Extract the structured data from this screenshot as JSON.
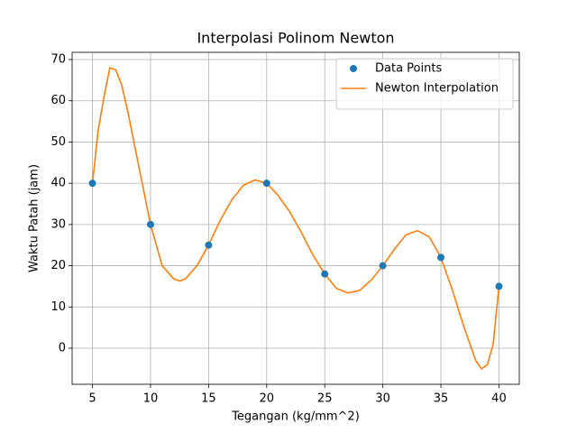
{
  "chart_data": {
    "type": "line",
    "title": "Interpolasi Polinom Newton",
    "x_label": "Tegangan (kg/mm^2)",
    "y_label": "Waktu Patah (jam)",
    "series": [
      {
        "name": "Data Points",
        "color": "#1f77b4",
        "style": "marker",
        "x": [
          5,
          10,
          15,
          20,
          25,
          30,
          35,
          40
        ],
        "values": [
          40,
          30,
          25,
          40,
          18,
          20,
          22,
          15
        ]
      },
      {
        "name": "Newton Interpolation",
        "color": "#ff7f0e",
        "style": "line",
        "x": [
          5,
          5.5,
          6,
          6.5,
          7,
          7.5,
          8,
          9,
          10,
          11,
          12,
          12.5,
          13,
          14,
          15,
          16,
          17,
          18,
          19,
          20,
          21,
          22,
          23,
          24,
          25,
          26,
          27,
          28,
          29,
          30,
          31,
          32,
          33,
          34,
          35,
          36,
          37,
          38,
          38.5,
          39,
          39.5,
          40
        ],
        "values": [
          40,
          53,
          61,
          68,
          67.5,
          64,
          58,
          44,
          30,
          20,
          16.8,
          16.3,
          16.8,
          20,
          25,
          31,
          36,
          39.5,
          40.8,
          40,
          37,
          33,
          28,
          22.5,
          18,
          14.5,
          13.4,
          14,
          16.5,
          20,
          24,
          27.5,
          28.5,
          27,
          22,
          14,
          5,
          -3,
          -5,
          -4,
          1,
          15
        ]
      }
    ],
    "xlim": [
      3.25,
      41.75
    ],
    "xticks": [
      5,
      10,
      15,
      20,
      25,
      30,
      35,
      40
    ],
    "ylim": [
      -8.75,
      71.75
    ],
    "yticks": [
      0,
      10,
      20,
      30,
      40,
      50,
      60,
      70
    ],
    "grid": true,
    "legend": "upper right"
  }
}
